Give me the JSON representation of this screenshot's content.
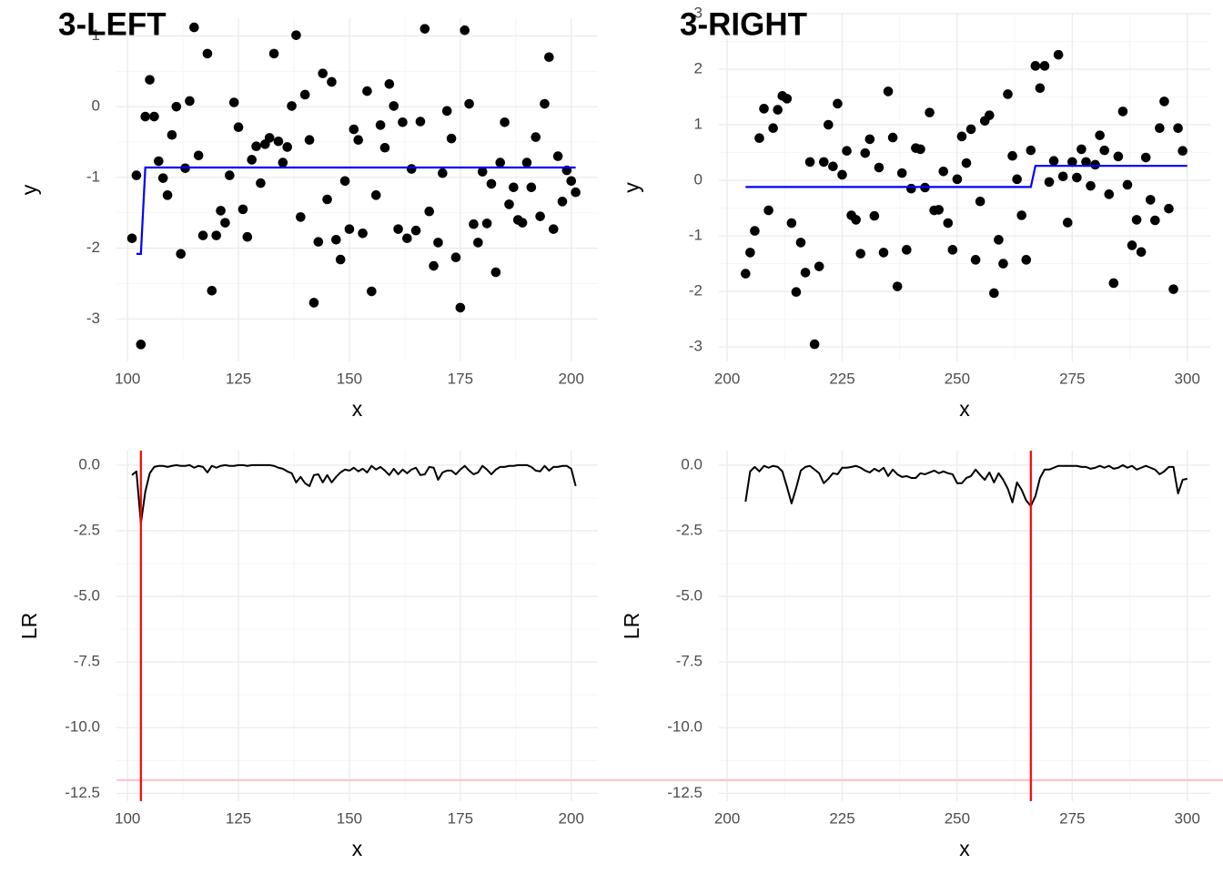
{
  "chart_data": [
    {
      "type": "scatter",
      "title": "3-LEFT",
      "xlabel": "x",
      "ylabel": "y",
      "point_color": "#000000",
      "x": [
        101,
        102,
        103,
        104,
        105,
        106,
        107,
        108,
        109,
        110,
        111,
        112,
        113,
        114,
        115,
        116,
        117,
        118,
        119,
        120,
        121,
        122,
        123,
        124,
        125,
        126,
        127,
        128,
        129,
        130,
        131,
        132,
        133,
        134,
        135,
        136,
        137,
        138,
        139,
        140,
        141,
        142,
        143,
        144,
        145,
        146,
        147,
        148,
        149,
        150,
        151,
        152,
        153,
        154,
        155,
        156,
        157,
        158,
        159,
        160,
        161,
        162,
        163,
        164,
        165,
        166,
        167,
        168,
        169,
        170,
        171,
        172,
        173,
        174,
        175,
        176,
        177,
        178,
        179,
        180,
        181,
        182,
        183,
        184,
        185,
        186,
        187,
        188,
        189,
        190,
        191,
        192,
        193,
        194,
        195,
        196,
        197,
        198,
        199,
        200,
        201
      ],
      "values": [
        -1.86,
        -0.97,
        -3.36,
        -0.14,
        0.38,
        -0.14,
        -0.77,
        -1.01,
        -1.25,
        -0.4,
        0,
        -2.08,
        -0.87,
        0.08,
        1.12,
        -0.69,
        -1.82,
        0.75,
        -2.6,
        -1.82,
        -1.47,
        -1.64,
        -0.97,
        0.06,
        -0.29,
        -1.45,
        -1.84,
        -0.75,
        -0.56,
        -1.08,
        -0.53,
        -0.44,
        0.75,
        -0.49,
        -0.79,
        -0.57,
        0.01,
        1.01,
        -1.56,
        0.17,
        -0.47,
        -2.77,
        -1.91,
        0.47,
        -1.31,
        0.35,
        -1.88,
        -2.16,
        -1.05,
        -1.73,
        -0.32,
        -0.47,
        -1.79,
        0.22,
        -2.61,
        -1.25,
        -0.26,
        -0.58,
        0.32,
        0.01,
        -1.73,
        -0.22,
        -1.86,
        -0.88,
        -1.75,
        -0.21,
        1.1,
        -1.48,
        -2.25,
        -1.92,
        -0.94,
        -0.06,
        -0.45,
        -2.13,
        -2.84,
        1.08,
        0.04,
        -1.66,
        -1.92,
        -0.92,
        -1.65,
        -1.09,
        -2.34,
        -0.79,
        -0.22,
        -1.38,
        -1.14,
        -1.6,
        -1.64,
        -0.79,
        -1.14,
        -0.43,
        -1.55,
        0.04,
        0.7,
        -1.73,
        -0.7,
        -1.34,
        -0.9,
        -1.05,
        -1.21
      ],
      "fit": {
        "color": "#0000ff",
        "x": [
          102,
          103,
          104,
          201
        ],
        "values": [
          -2.08,
          -2.08,
          -0.86,
          -0.86
        ]
      },
      "xlim": [
        97.5,
        206
      ],
      "ylim": [
        -3.6,
        1.25
      ],
      "xticks": [
        100,
        125,
        150,
        175,
        200
      ],
      "yticks": [
        -3,
        -2,
        -1,
        0,
        1
      ],
      "grid": true
    },
    {
      "type": "scatter",
      "title": "3-RIGHT",
      "xlabel": "x",
      "ylabel": "y",
      "point_color": "#000000",
      "x": [
        204,
        205,
        206,
        207,
        208,
        209,
        210,
        211,
        212,
        213,
        214,
        215,
        216,
        217,
        218,
        219,
        220,
        221,
        222,
        223,
        224,
        225,
        226,
        227,
        228,
        229,
        230,
        231,
        232,
        233,
        234,
        235,
        236,
        237,
        238,
        239,
        240,
        241,
        242,
        243,
        244,
        245,
        246,
        247,
        248,
        249,
        250,
        251,
        252,
        253,
        254,
        255,
        256,
        257,
        258,
        259,
        260,
        261,
        262,
        263,
        264,
        265,
        266,
        267,
        268,
        269,
        270,
        271,
        272,
        273,
        274,
        275,
        276,
        277,
        278,
        279,
        280,
        281,
        282,
        283,
        284,
        285,
        286,
        287,
        288,
        289,
        290,
        291,
        292,
        293,
        294,
        295,
        296,
        297,
        298,
        299
      ],
      "values": [
        -1.68,
        -1.3,
        -0.91,
        0.76,
        1.29,
        -0.54,
        0.94,
        1.27,
        1.52,
        1.47,
        -0.77,
        -2.01,
        -1.12,
        -1.66,
        0.33,
        -2.95,
        -1.55,
        0.33,
        1.0,
        0.25,
        1.38,
        0.1,
        0.53,
        -0.63,
        -0.71,
        -1.32,
        0.49,
        0.74,
        -0.64,
        0.23,
        -1.3,
        1.6,
        0.77,
        -1.91,
        0.13,
        -1.25,
        -0.15,
        0.58,
        0.56,
        -0.13,
        1.22,
        -0.54,
        -0.53,
        0.16,
        -0.77,
        -1.25,
        0.02,
        0.79,
        0.31,
        0.92,
        -1.43,
        -0.38,
        1.07,
        1.17,
        -2.03,
        -1.07,
        -1.5,
        1.55,
        0.44,
        0.02,
        -0.63,
        -1.43,
        0.54,
        2.06,
        1.66,
        2.06,
        -0.03,
        0.35,
        2.26,
        0.07,
        -0.76,
        0.33,
        0.05,
        0.56,
        0.33,
        -0.1,
        0.28,
        0.81,
        0.54,
        -0.25,
        -1.85,
        0.43,
        1.24,
        -0.08,
        -1.17,
        -0.71,
        -1.29,
        0.41,
        -0.35,
        -0.72,
        0.94,
        1.42,
        -0.51,
        -1.96,
        0.94,
        0.53
      ],
      "fit": {
        "color": "#0000ff",
        "x": [
          204,
          266,
          267,
          300
        ],
        "values": [
          -0.12,
          -0.12,
          0.26,
          0.26
        ]
      },
      "xlim": [
        198.2,
        305
      ],
      "ylim": [
        -3.26,
        3.0
      ],
      "xticks": [
        200,
        225,
        250,
        275,
        300
      ],
      "yticks": [
        -3,
        -2,
        -1,
        0,
        1,
        2,
        3
      ],
      "grid": true
    },
    {
      "type": "line",
      "xlabel": "x",
      "ylabel": "LR",
      "color": "#000000",
      "x": [
        101,
        102,
        103,
        104,
        105,
        106,
        107,
        108,
        109,
        110,
        111,
        112,
        113,
        114,
        115,
        116,
        117,
        118,
        119,
        120,
        121,
        122,
        123,
        124,
        125,
        126,
        127,
        128,
        129,
        130,
        131,
        132,
        133,
        134,
        135,
        136,
        137,
        138,
        139,
        140,
        141,
        142,
        143,
        144,
        145,
        146,
        147,
        148,
        149,
        150,
        151,
        152,
        153,
        154,
        155,
        156,
        157,
        158,
        159,
        160,
        161,
        162,
        163,
        164,
        165,
        166,
        167,
        168,
        169,
        170,
        171,
        172,
        173,
        174,
        175,
        176,
        177,
        178,
        179,
        180,
        181,
        182,
        183,
        184,
        185,
        186,
        187,
        188,
        189,
        190,
        191,
        192,
        193,
        194,
        195,
        196,
        197,
        198,
        199,
        200,
        201
      ],
      "values": [
        -0.38,
        -0.24,
        -2.22,
        -1.01,
        -0.31,
        -0.07,
        -0.03,
        -0.03,
        -0.07,
        -0.03,
        0,
        -0.03,
        -0.03,
        0,
        -0.1,
        -0.03,
        -0.07,
        -0.28,
        -0.03,
        -0.1,
        -0.03,
        0,
        -0.03,
        -0.03,
        0,
        0,
        -0.03,
        0,
        0,
        0,
        0,
        0,
        -0.03,
        -0.1,
        -0.14,
        -0.24,
        -0.31,
        -0.66,
        -0.45,
        -0.69,
        -0.8,
        -0.38,
        -0.35,
        -0.66,
        -0.38,
        -0.66,
        -0.45,
        -0.28,
        -0.17,
        -0.21,
        -0.1,
        -0.24,
        -0.14,
        -0.28,
        -0.03,
        -0.17,
        -0.07,
        -0.21,
        -0.38,
        -0.14,
        -0.35,
        -0.17,
        -0.31,
        -0.17,
        -0.1,
        -0.38,
        -0.35,
        -0.07,
        -0.1,
        -0.56,
        -0.28,
        -0.21,
        -0.21,
        -0.35,
        -0.17,
        -0.03,
        -0.21,
        -0.35,
        -0.28,
        -0.03,
        -0.17,
        -0.35,
        -0.17,
        -0.07,
        -0.07,
        -0.03,
        -0.03,
        0,
        0,
        0,
        -0.07,
        -0.21,
        -0.24,
        -0.03,
        -0.21,
        -0.07,
        -0.07,
        -0.03,
        -0.03,
        -0.14,
        -0.8
      ],
      "vline": 103,
      "vline_color": "#ff0000",
      "hline": -12,
      "hline_color": "#ffc0cb",
      "xlim": [
        97.5,
        206
      ],
      "ylim": [
        -12.8,
        0.55
      ],
      "xticks": [
        100,
        125,
        150,
        175,
        200
      ],
      "yticks": [
        -12.5,
        {
          "value": -10,
          "label": "-10.0"
        },
        -7.5,
        {
          "value": -5,
          "label": "-5.0"
        },
        -2.5,
        {
          "value": 0,
          "label": "0.0"
        }
      ],
      "grid": true
    },
    {
      "type": "line",
      "xlabel": "x",
      "ylabel": "LR",
      "color": "#000000",
      "x": [
        204,
        205,
        206,
        207,
        208,
        209,
        210,
        211,
        212,
        213,
        214,
        215,
        216,
        217,
        218,
        219,
        220,
        221,
        222,
        223,
        224,
        225,
        226,
        227,
        228,
        229,
        230,
        231,
        232,
        233,
        234,
        235,
        236,
        237,
        238,
        239,
        240,
        241,
        242,
        243,
        244,
        245,
        246,
        247,
        248,
        249,
        250,
        251,
        252,
        253,
        254,
        255,
        256,
        257,
        258,
        259,
        260,
        261,
        262,
        263,
        264,
        265,
        266,
        267,
        268,
        269,
        270,
        271,
        272,
        273,
        274,
        275,
        276,
        277,
        278,
        279,
        280,
        281,
        282,
        283,
        284,
        285,
        286,
        287,
        288,
        289,
        290,
        291,
        292,
        293,
        294,
        295,
        296,
        297,
        298,
        299,
        300
      ],
      "values": [
        -1.39,
        -0.24,
        -0.07,
        -0.24,
        -0.03,
        -0.1,
        -0.03,
        -0.07,
        -0.24,
        -0.83,
        -1.46,
        -0.87,
        -0.21,
        -0.07,
        -0.03,
        -0.17,
        -0.31,
        -0.69,
        -0.52,
        -0.31,
        -0.35,
        -0.1,
        -0.1,
        -0.07,
        -0.03,
        -0.1,
        -0.21,
        -0.28,
        -0.14,
        -0.24,
        -0.1,
        -0.42,
        -0.17,
        -0.35,
        -0.45,
        -0.42,
        -0.49,
        -0.49,
        -0.31,
        -0.35,
        -0.28,
        -0.21,
        -0.31,
        -0.24,
        -0.31,
        -0.35,
        -0.69,
        -0.69,
        -0.49,
        -0.42,
        -0.17,
        -0.38,
        -0.56,
        -0.28,
        -0.66,
        -0.31,
        -0.56,
        -0.9,
        -1.42,
        -0.66,
        -0.94,
        -1.35,
        -1.56,
        -1.18,
        -0.49,
        -0.17,
        -0.17,
        -0.1,
        -0.03,
        -0.03,
        -0.03,
        -0.03,
        -0.03,
        -0.07,
        -0.07,
        -0.14,
        -0.1,
        -0.03,
        -0.1,
        -0.03,
        -0.14,
        -0.1,
        0,
        -0.1,
        -0.03,
        -0.17,
        -0.1,
        -0.03,
        -0.1,
        -0.17,
        -0.35,
        -0.24,
        -0.07,
        -0.07,
        -1.08,
        -0.56,
        -0.52
      ],
      "vline": 266,
      "vline_color": "#ff0000",
      "hline": -12,
      "hline_color": "#ffc0cb",
      "xlim": [
        198.2,
        305
      ],
      "ylim": [
        -12.8,
        0.55
      ],
      "xticks": [
        200,
        225,
        250,
        275,
        300
      ],
      "yticks": [
        -12.5,
        {
          "value": -10,
          "label": "-10.0"
        },
        -7.5,
        {
          "value": -5,
          "label": "-5.0"
        },
        -2.5,
        {
          "value": 0,
          "label": "0.0"
        }
      ],
      "grid": true
    }
  ]
}
